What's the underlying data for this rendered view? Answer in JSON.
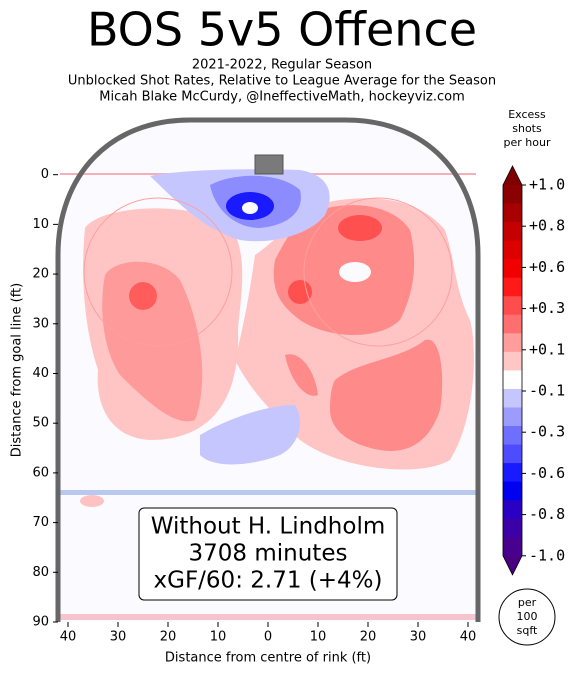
{
  "chart_data": {
    "type": "heatmap",
    "title": "BOS 5v5 Offence",
    "subtitle_lines": [
      "2021-2022, Regular Season",
      "Unblocked Shot Rates, Relative to League Average for the Season",
      "Micah Blake McCurdy, @IneffectiveMath, hockeyviz.com"
    ],
    "xlabel": "Distance from centre of rink (ft)",
    "ylabel": "Distance from goal line (ft)",
    "xlim": [
      -42,
      42
    ],
    "xticks": [
      {
        "value": -40,
        "label": "40"
      },
      {
        "value": -30,
        "label": "30"
      },
      {
        "value": -20,
        "label": "20"
      },
      {
        "value": -10,
        "label": "10"
      },
      0,
      10,
      20,
      30,
      40
    ],
    "ylim": [
      90,
      -11
    ],
    "yticks": [
      0,
      10,
      20,
      30,
      40,
      50,
      60,
      70,
      80,
      90
    ],
    "annotation_lines": [
      "Without H. Lindholm",
      "3708 minutes",
      "xGF/60: 2.71 (+4%)"
    ],
    "unit_lines": [
      "per",
      "100",
      "sqft"
    ],
    "colorbar": {
      "title_lines": [
        "Excess",
        "shots",
        "per hour"
      ],
      "extend_colors": [
        "#7f0000",
        "#4b0082"
      ],
      "colors": [
        "#8b0000",
        "#a80000",
        "#c40000",
        "#dc0000",
        "#f00000",
        "#ff1a1a",
        "#ff4d4d",
        "#ff6f6f",
        "#ff9c9c",
        "#ffc6c6",
        "#ffffff",
        "#c6c6ff",
        "#9c9cff",
        "#6f6fff",
        "#4d4dff",
        "#1a1aff",
        "#0000f0",
        "#2a00c4",
        "#3d00a8",
        "#48008f"
      ],
      "ticks": [
        {
          "value": 1.0,
          "label": "+1.0"
        },
        {
          "value": 0.8,
          "label": "+0.8"
        },
        {
          "value": 0.6,
          "label": "+0.6"
        },
        {
          "value": 0.3,
          "label": "+0.3"
        },
        {
          "value": 0.1,
          "label": "+0.1"
        },
        -0.1,
        -0.3,
        -0.6,
        -0.8,
        {
          "value": -1.0,
          "label": "-1.0"
        }
      ]
    }
  }
}
